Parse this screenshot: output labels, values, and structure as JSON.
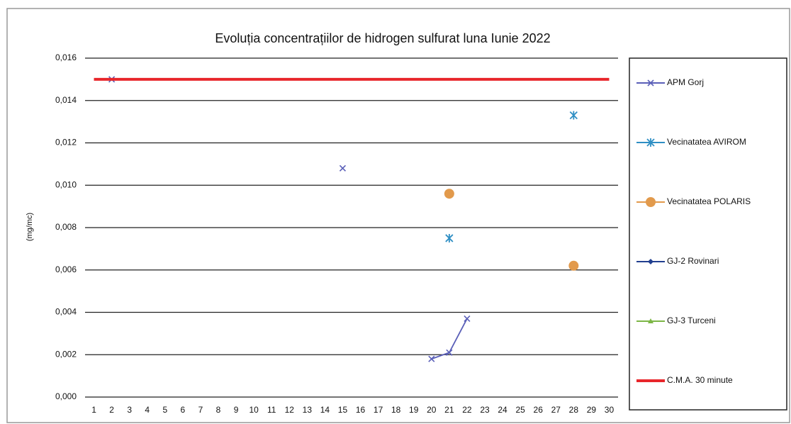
{
  "chart_data": {
    "type": "line",
    "title": "Evoluția concentrațiilor de hidrogen sulfurat luna Iunie 2022",
    "y_label": "(mg/mc)",
    "categories": [
      "1",
      "2",
      "3",
      "4",
      "5",
      "6",
      "7",
      "8",
      "9",
      "10",
      "11",
      "12",
      "13",
      "14",
      "15",
      "16",
      "17",
      "18",
      "19",
      "20",
      "21",
      "22",
      "23",
      "24",
      "25",
      "26",
      "27",
      "28",
      "29",
      "30"
    ],
    "ylim": [
      0,
      0.016
    ],
    "yticks": [
      {
        "value": 0,
        "label": "0,000"
      },
      {
        "value": 0.002,
        "label": "0,002"
      },
      {
        "value": 0.004,
        "label": "0,004"
      },
      {
        "value": 0.006,
        "label": "0,006"
      },
      {
        "value": 0.008,
        "label": "0,008"
      },
      {
        "value": 0.01,
        "label": "0,010"
      },
      {
        "value": 0.012,
        "label": "0,012"
      },
      {
        "value": 0.014,
        "label": "0,014"
      },
      {
        "value": 0.016,
        "label": "0,016"
      }
    ],
    "grid": true,
    "legend": "right",
    "series": [
      {
        "name": "APM Gorj",
        "color": "#5a5fb8",
        "marker": "x",
        "values": [
          null,
          0.015,
          null,
          null,
          null,
          null,
          null,
          null,
          null,
          null,
          null,
          null,
          null,
          null,
          0.0108,
          null,
          null,
          null,
          null,
          0.0018,
          0.0021,
          0.0037,
          null,
          null,
          null,
          null,
          null,
          null,
          null,
          null
        ]
      },
      {
        "name": "Vecinatatea AVIROM",
        "color": "#2f8fc4",
        "marker": "asterisk",
        "values": [
          null,
          null,
          null,
          null,
          null,
          null,
          null,
          null,
          null,
          null,
          null,
          null,
          null,
          null,
          null,
          null,
          null,
          null,
          null,
          null,
          0.0075,
          null,
          null,
          null,
          null,
          null,
          null,
          0.0133,
          null,
          null
        ]
      },
      {
        "name": "Vecinatatea POLARIS",
        "color": "#e29a4c",
        "marker": "circle",
        "values": [
          null,
          null,
          null,
          null,
          null,
          null,
          null,
          null,
          null,
          null,
          null,
          null,
          null,
          null,
          null,
          null,
          null,
          null,
          null,
          null,
          0.0096,
          null,
          null,
          null,
          null,
          null,
          null,
          0.0062,
          null,
          null
        ]
      },
      {
        "name": "GJ-2 Rovinari",
        "color": "#213f8f",
        "marker": "diamond",
        "values": [
          null,
          null,
          null,
          null,
          null,
          null,
          null,
          null,
          null,
          null,
          null,
          null,
          null,
          null,
          null,
          null,
          null,
          null,
          null,
          null,
          null,
          null,
          null,
          null,
          null,
          null,
          null,
          null,
          null,
          null
        ]
      },
      {
        "name": "GJ-3 Turceni",
        "color": "#7db646",
        "marker": "triangle",
        "values": [
          null,
          null,
          null,
          null,
          null,
          null,
          null,
          null,
          null,
          null,
          null,
          null,
          null,
          null,
          null,
          null,
          null,
          null,
          null,
          null,
          null,
          null,
          null,
          null,
          null,
          null,
          null,
          null,
          null,
          null
        ]
      },
      {
        "name": "C.M.A. 30 minute",
        "color": "#e8262b",
        "marker": "none",
        "values": [
          0.015,
          0.015,
          0.015,
          0.015,
          0.015,
          0.015,
          0.015,
          0.015,
          0.015,
          0.015,
          0.015,
          0.015,
          0.015,
          0.015,
          0.015,
          0.015,
          0.015,
          0.015,
          0.015,
          0.015,
          0.015,
          0.015,
          0.015,
          0.015,
          0.015,
          0.015,
          0.015,
          0.015,
          0.015,
          0.015
        ]
      }
    ]
  }
}
